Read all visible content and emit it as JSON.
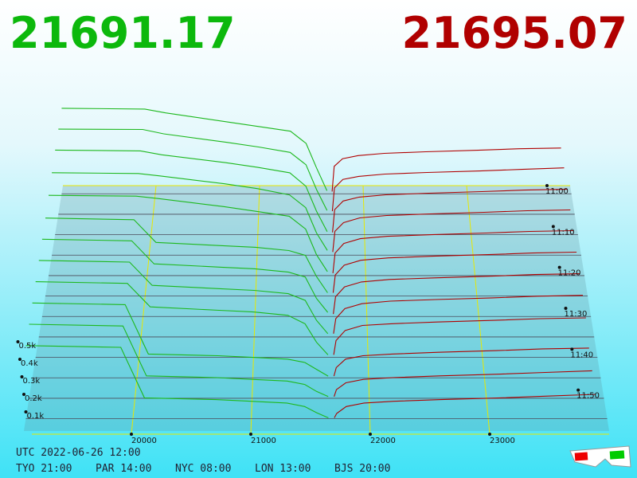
{
  "header": {
    "bid_price": "21691.17",
    "ask_price": "21695.07"
  },
  "chart_data": {
    "type": "depth3d",
    "xlim": [
      19100,
      24000
    ],
    "xticks": [
      20000,
      21000,
      22000,
      23000
    ],
    "tlim": [
      "11:00",
      "12:00"
    ],
    "tticks": [
      "11:00",
      "11:10",
      "11:20",
      "11:30",
      "11:40",
      "11:50"
    ],
    "ylim": [
      0,
      600
    ],
    "yticks": [
      {
        "value": 100,
        "label": "0.1k"
      },
      {
        "value": 200,
        "label": "0.2k"
      },
      {
        "value": 300,
        "label": "0.3k"
      },
      {
        "value": 400,
        "label": "0.4k"
      },
      {
        "value": 500,
        "label": "0.5k"
      }
    ],
    "bid_color": "#1db81d",
    "ask_color": "#b00000",
    "bid_prices": [
      19100,
      19900,
      20100,
      20700,
      21000,
      21300,
      21450,
      21550,
      21650
    ],
    "ask_prices": [
      21700,
      21720,
      21800,
      21950,
      22200,
      22600,
      23100,
      23500,
      23900
    ],
    "snapshots": [
      {
        "time": "11:02",
        "bids": [
          560,
          555,
          530,
          470,
          440,
          410,
          330,
          170,
          20
        ],
        "asks": [
          15,
          180,
          230,
          250,
          265,
          275,
          285,
          295,
          300
        ]
      },
      {
        "time": "11:07",
        "bids": [
          550,
          548,
          520,
          465,
          435,
          400,
          320,
          160,
          25
        ],
        "asks": [
          20,
          170,
          225,
          245,
          260,
          270,
          280,
          290,
          300
        ]
      },
      {
        "time": "11:12",
        "bids": [
          540,
          535,
          510,
          460,
          430,
          395,
          310,
          150,
          20
        ],
        "asks": [
          15,
          160,
          215,
          240,
          255,
          265,
          275,
          285,
          290
        ]
      },
      {
        "time": "11:17",
        "bids": [
          520,
          515,
          500,
          450,
          420,
          380,
          300,
          140,
          30
        ],
        "asks": [
          20,
          150,
          205,
          235,
          250,
          260,
          270,
          280,
          285
        ]
      },
      {
        "time": "11:22",
        "bids": [
          500,
          495,
          480,
          430,
          400,
          370,
          290,
          130,
          25
        ],
        "asks": [
          15,
          140,
          200,
          230,
          245,
          255,
          265,
          275,
          280
        ]
      },
      {
        "time": "11:27",
        "bids": [
          480,
          470,
          330,
          310,
          300,
          280,
          250,
          120,
          20
        ],
        "asks": [
          20,
          130,
          190,
          220,
          235,
          245,
          255,
          265,
          270
        ]
      },
      {
        "time": "11:32",
        "bids": [
          470,
          460,
          320,
          300,
          290,
          270,
          240,
          110,
          25
        ],
        "asks": [
          15,
          120,
          180,
          210,
          225,
          235,
          245,
          255,
          260
        ]
      },
      {
        "time": "11:37",
        "bids": [
          460,
          450,
          310,
          290,
          280,
          260,
          220,
          100,
          20
        ],
        "asks": [
          20,
          110,
          170,
          200,
          215,
          225,
          235,
          245,
          250
        ]
      },
      {
        "time": "11:42",
        "bids": [
          450,
          440,
          300,
          280,
          270,
          250,
          200,
          90,
          15
        ],
        "asks": [
          15,
          100,
          160,
          190,
          200,
          210,
          220,
          230,
          235
        ]
      },
      {
        "time": "11:47",
        "bids": [
          440,
          430,
          140,
          130,
          120,
          110,
          90,
          50,
          10
        ],
        "asks": [
          10,
          60,
          110,
          130,
          140,
          150,
          160,
          170,
          175
        ]
      },
      {
        "time": "11:52",
        "bids": [
          430,
          420,
          130,
          120,
          110,
          100,
          80,
          40,
          10
        ],
        "asks": [
          10,
          50,
          90,
          110,
          120,
          130,
          140,
          150,
          160
        ]
      },
      {
        "time": "11:57",
        "bids": [
          420,
          410,
          120,
          110,
          100,
          90,
          70,
          35,
          5
        ],
        "asks": [
          5,
          30,
          70,
          90,
          100,
          110,
          120,
          130,
          140
        ]
      }
    ]
  },
  "footer": {
    "utc": "UTC 2022-06-26 12:00",
    "clocks": [
      "TYO 21:00",
      "PAR 14:00",
      "NYC 08:00",
      "LON 13:00",
      "BJS 20:00"
    ]
  }
}
